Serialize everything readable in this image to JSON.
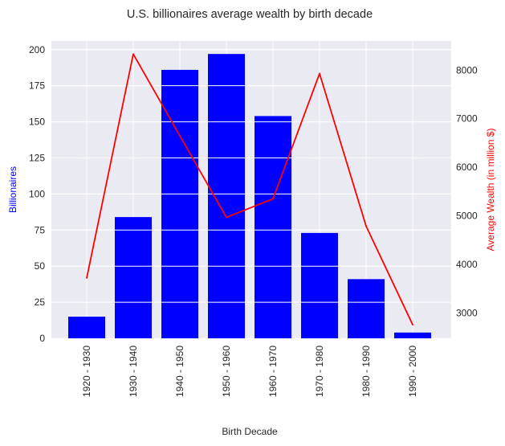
{
  "chart_data": {
    "type": "bar",
    "title": "U.S. billionaires average wealth by birth decade",
    "xlabel": "Birth Decade",
    "ylabel": "Billionaires",
    "y2label": "Average Wealth (in million $)",
    "categories": [
      "1920 - 1930",
      "1930 - 1940",
      "1940 - 1950",
      "1950 - 1960",
      "1960 - 1970",
      "1970 - 1980",
      "1980 - 1990",
      "1990 - 2000"
    ],
    "series": [
      {
        "type": "bar",
        "axis": "left",
        "values": [
          15,
          84,
          186,
          197,
          154,
          73,
          41,
          4
        ]
      },
      {
        "type": "line",
        "axis": "right",
        "values": [
          3720,
          8330,
          6650,
          4970,
          5350,
          7930,
          4790,
          2760
        ]
      }
    ],
    "ylim": [
      0,
      206
    ],
    "y2lim": [
      2480,
      8600
    ],
    "yticks": [
      0,
      25,
      50,
      75,
      100,
      125,
      150,
      175,
      200
    ],
    "y2ticks": [
      3000,
      4000,
      5000,
      6000,
      7000,
      8000
    ],
    "grid": true,
    "colors": {
      "bars": "#0000ff",
      "line": "#ff0000",
      "background": "#eaeaf2",
      "grid": "#ffffff",
      "ylabel": "#0000ff",
      "y2label": "#ff0000"
    }
  }
}
